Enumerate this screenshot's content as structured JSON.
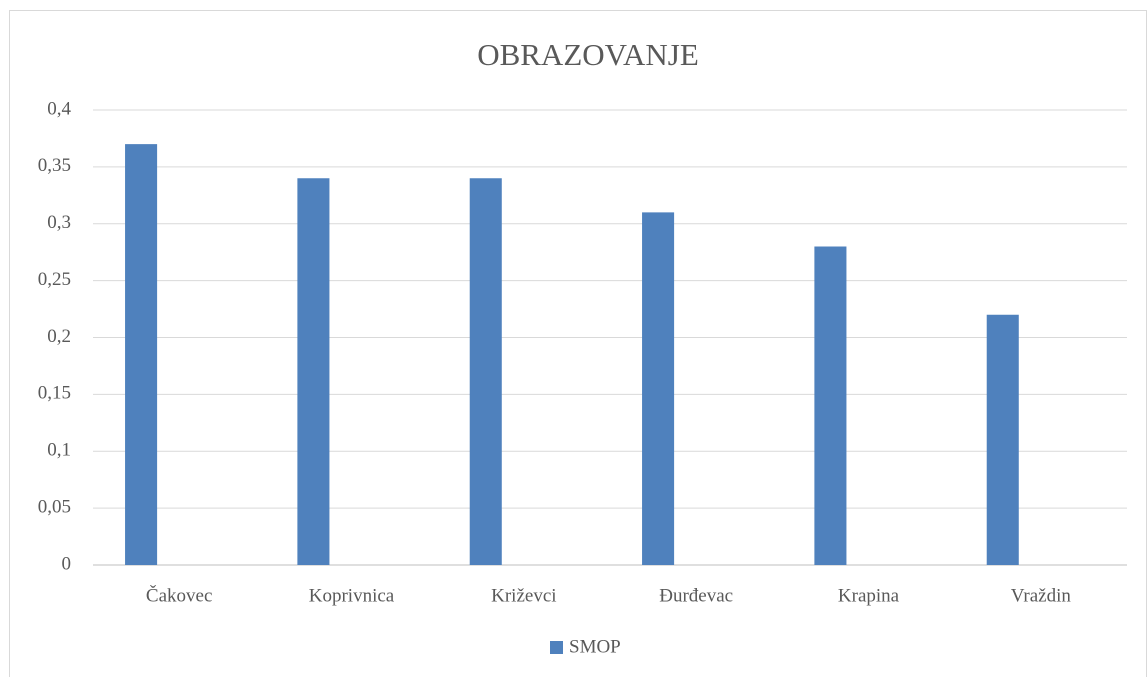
{
  "chart_data": {
    "type": "bar",
    "title": "OBRAZOVANJE",
    "categories": [
      "Čakovec",
      "Koprivnica",
      "Križevci",
      "Đurđevac",
      "Krapina",
      "Vraždin"
    ],
    "series": [
      {
        "name": "SMOP",
        "color": "#4f81bd",
        "values": [
          0.37,
          0.34,
          0.34,
          0.31,
          0.28,
          0.22
        ]
      }
    ],
    "ylim": [
      0,
      0.4
    ],
    "yticks": [
      0,
      {
        "value": 0.05,
        "label": "0,05"
      },
      {
        "value": 0.1,
        "label": "0,1"
      },
      {
        "value": 0.15,
        "label": "0,15"
      },
      {
        "value": 0.2,
        "label": "0,2"
      },
      {
        "value": 0.25,
        "label": "0,25"
      },
      {
        "value": 0.3,
        "label": "0,3"
      },
      {
        "value": 0.35,
        "label": "0,35"
      },
      {
        "value": 0.4,
        "label": "0,4"
      }
    ],
    "grid": true,
    "legend": "bottom"
  }
}
